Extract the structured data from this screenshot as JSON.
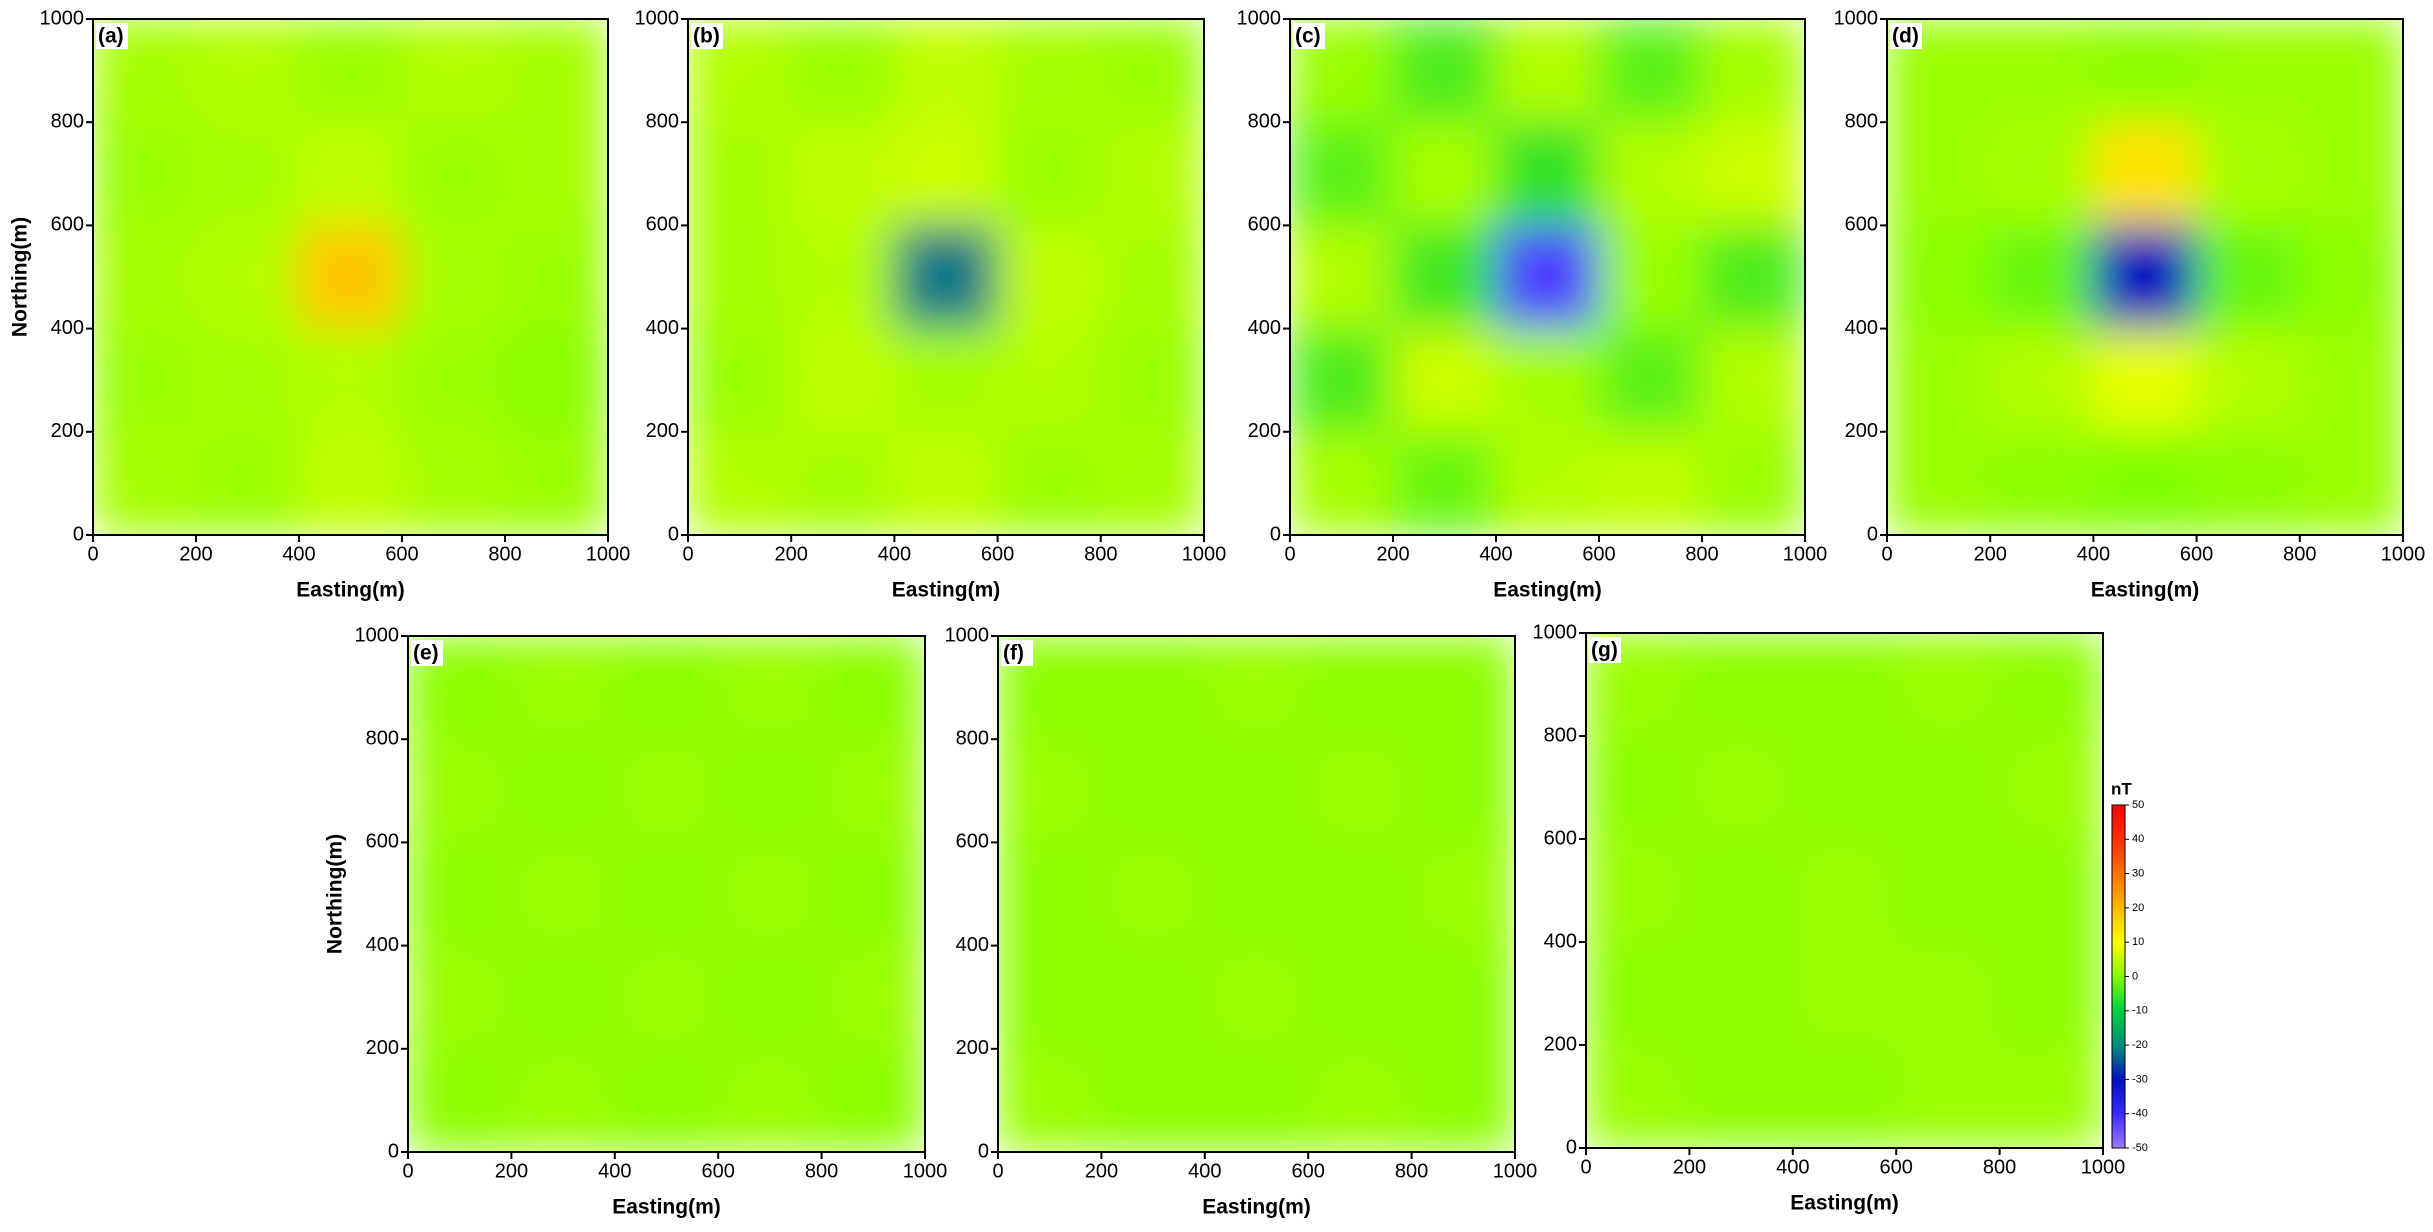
{
  "chart_data": [
    {
      "type": "heatmap",
      "label": "(a)",
      "xlabel": "Easting(m)",
      "ylabel": "Northing(m)",
      "xlim": [
        0,
        1000
      ],
      "ylim": [
        0,
        1000
      ],
      "xticks": [
        0,
        200,
        400,
        600,
        800,
        1000
      ],
      "yticks": [
        0,
        200,
        400,
        600,
        800,
        1000
      ],
      "x": [
        100,
        300,
        500,
        700,
        900
      ],
      "y": [
        900,
        700,
        500,
        300,
        100
      ],
      "z": [
        [
          3,
          4,
          2,
          4,
          3
        ],
        [
          2,
          3,
          5,
          2,
          3
        ],
        [
          3,
          4,
          18,
          3,
          2
        ],
        [
          2,
          3,
          4,
          2,
          1
        ],
        [
          3,
          2,
          5,
          3,
          2
        ]
      ]
    },
    {
      "type": "heatmap",
      "label": "(b)",
      "xlabel": "Easting(m)",
      "xlim": [
        0,
        1000
      ],
      "ylim": [
        0,
        1000
      ],
      "xticks": [
        0,
        200,
        400,
        600,
        800,
        1000
      ],
      "yticks": [
        0,
        200,
        400,
        600,
        800,
        1000
      ],
      "x": [
        100,
        300,
        500,
        700,
        900
      ],
      "y": [
        900,
        700,
        500,
        300,
        100
      ],
      "z": [
        [
          4,
          2,
          5,
          3,
          2
        ],
        [
          3,
          5,
          6,
          2,
          4
        ],
        [
          3,
          4,
          -22,
          5,
          3
        ],
        [
          2,
          5,
          3,
          4,
          2
        ],
        [
          4,
          3,
          5,
          2,
          3
        ]
      ]
    },
    {
      "type": "heatmap",
      "label": "(c)",
      "xlabel": "Easting(m)",
      "xlim": [
        0,
        1000
      ],
      "ylim": [
        0,
        1000
      ],
      "xticks": [
        0,
        200,
        400,
        600,
        800,
        1000
      ],
      "yticks": [
        0,
        200,
        400,
        600,
        800,
        1000
      ],
      "x": [
        100,
        300,
        500,
        700,
        900
      ],
      "y": [
        900,
        700,
        500,
        300,
        100
      ],
      "z": [
        [
          2,
          -4,
          4,
          -3,
          3
        ],
        [
          -3,
          3,
          -6,
          4,
          6
        ],
        [
          4,
          -5,
          -42,
          2,
          -4
        ],
        [
          -4,
          6,
          3,
          -3,
          4
        ],
        [
          3,
          -2,
          4,
          5,
          2
        ]
      ]
    },
    {
      "type": "heatmap",
      "label": "(d)",
      "xlabel": "Easting(m)",
      "xlim": [
        0,
        1000
      ],
      "ylim": [
        0,
        1000
      ],
      "xticks": [
        0,
        200,
        400,
        600,
        800,
        1000
      ],
      "yticks": [
        0,
        200,
        400,
        600,
        800,
        1000
      ],
      "x": [
        100,
        300,
        500,
        700,
        900
      ],
      "y": [
        900,
        700,
        500,
        300,
        100
      ],
      "z": [
        [
          2,
          2,
          1,
          2,
          2
        ],
        [
          2,
          3,
          14,
          3,
          2
        ],
        [
          1,
          -2,
          -30,
          -2,
          1
        ],
        [
          2,
          4,
          8,
          4,
          2
        ],
        [
          2,
          1,
          0,
          1,
          2
        ]
      ]
    },
    {
      "type": "heatmap",
      "label": "(e)",
      "xlabel": "Easting(m)",
      "ylabel": "Northing(m)",
      "xlim": [
        0,
        1000
      ],
      "ylim": [
        0,
        1000
      ],
      "xticks": [
        0,
        200,
        400,
        600,
        800,
        1000
      ],
      "yticks": [
        0,
        200,
        400,
        600,
        800,
        1000
      ],
      "x": [
        100,
        300,
        500,
        700,
        900
      ],
      "y": [
        900,
        700,
        500,
        300,
        100
      ],
      "z": [
        [
          1,
          2,
          1,
          2,
          1
        ],
        [
          2,
          1,
          2,
          1,
          2
        ],
        [
          1,
          2,
          1,
          2,
          1
        ],
        [
          2,
          1,
          2,
          1,
          2
        ],
        [
          1,
          2,
          1,
          2,
          1
        ]
      ]
    },
    {
      "type": "heatmap",
      "label": "(f)",
      "xlabel": "Easting(m)",
      "xlim": [
        0,
        1000
      ],
      "ylim": [
        0,
        1000
      ],
      "xticks": [
        0,
        200,
        400,
        600,
        800,
        1000
      ],
      "yticks": [
        0,
        200,
        400,
        600,
        800,
        1000
      ],
      "x": [
        100,
        300,
        500,
        700,
        900
      ],
      "y": [
        900,
        700,
        500,
        300,
        100
      ],
      "z": [
        [
          1,
          1,
          2,
          1,
          1
        ],
        [
          2,
          1,
          1,
          2,
          1
        ],
        [
          1,
          2,
          1,
          1,
          2
        ],
        [
          1,
          1,
          2,
          1,
          1
        ],
        [
          2,
          1,
          1,
          2,
          1
        ]
      ]
    },
    {
      "type": "heatmap",
      "label": "(g)",
      "xlabel": "Easting(m)",
      "xlim": [
        0,
        1000
      ],
      "ylim": [
        0,
        1000
      ],
      "xticks": [
        0,
        200,
        400,
        600,
        800,
        1000
      ],
      "yticks": [
        0,
        200,
        400,
        600,
        800,
        1000
      ],
      "x": [
        100,
        300,
        500,
        700,
        900
      ],
      "y": [
        900,
        700,
        500,
        300,
        100
      ],
      "z": [
        [
          2,
          1,
          1,
          2,
          1
        ],
        [
          1,
          2,
          1,
          1,
          2
        ],
        [
          2,
          1,
          2,
          1,
          1
        ],
        [
          1,
          1,
          2,
          2,
          1
        ],
        [
          2,
          1,
          1,
          2,
          2
        ]
      ],
      "colorbar": {
        "label": "nT",
        "lim": [
          -50,
          50
        ],
        "ticks": [
          50,
          40,
          30,
          20,
          10,
          0,
          -10,
          -20,
          -30,
          -40,
          -50
        ],
        "colors": [
          "#9b7bff",
          "#3a2bff",
          "#0010c0",
          "#00907a",
          "#00d040",
          "#80ff00",
          "#ffff00",
          "#ffb800",
          "#ff7000",
          "#ff3000",
          "#ff0000"
        ]
      }
    }
  ]
}
